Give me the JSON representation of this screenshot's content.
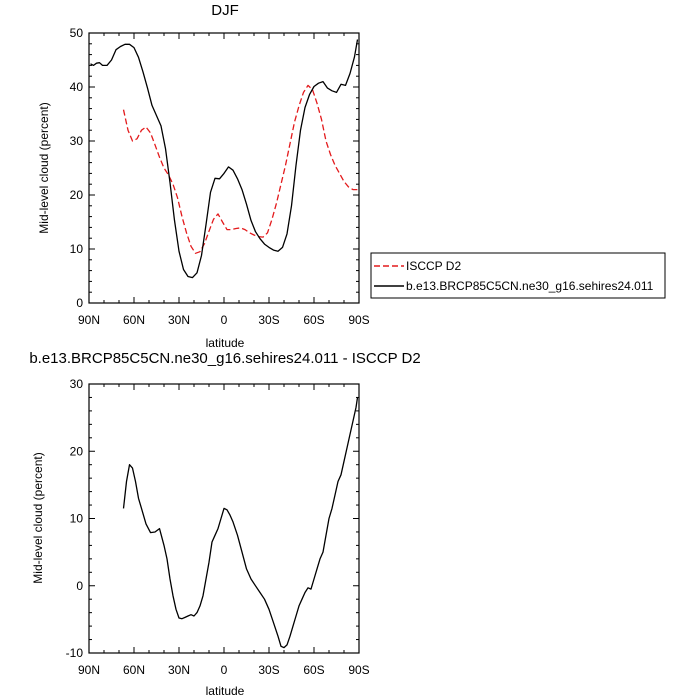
{
  "colors": {
    "model": "#000000",
    "obs": "#e31a1c",
    "axis": "#000000"
  },
  "chart_data": [
    {
      "type": "line",
      "title": "DJF",
      "xlabel": "latitude",
      "ylabel": "Mid-level cloud (percent)",
      "xlim": [
        -90,
        90
      ],
      "ylim": [
        0,
        50
      ],
      "x_tick_values": [
        -90,
        -60,
        -30,
        0,
        30,
        60,
        90
      ],
      "x_tick_labels": [
        "90N",
        "60N",
        "30N",
        "0",
        "30S",
        "60S",
        "90S"
      ],
      "y_ticks": [
        0,
        10,
        20,
        30,
        40,
        50
      ],
      "grid": false,
      "legend_position": "outside-right",
      "series": [
        {
          "name": "ISCCP D2",
          "style": "dashed",
          "color": "#e31a1c",
          "x": [
            -67,
            -64,
            -61,
            -58,
            -55,
            -52,
            -49,
            -46,
            -43,
            -40,
            -37,
            -34,
            -31,
            -28,
            -25,
            -22,
            -19,
            -16,
            -13,
            -10,
            -7,
            -4,
            -1,
            2,
            5,
            8,
            11,
            14,
            17,
            20,
            23,
            26,
            29,
            32,
            35,
            38,
            41,
            44,
            47,
            50,
            53,
            56,
            59,
            62,
            65,
            68,
            71,
            74,
            77,
            80,
            83,
            86,
            89
          ],
          "values": [
            35.8,
            32.0,
            30.0,
            30.4,
            32.0,
            32.6,
            31.5,
            29.3,
            27.0,
            25.0,
            23.7,
            22.0,
            19.5,
            16.0,
            13.0,
            10.5,
            9.2,
            9.5,
            11.0,
            13.3,
            15.5,
            16.5,
            15.0,
            13.6,
            13.6,
            13.8,
            13.9,
            13.6,
            13.0,
            12.6,
            12.3,
            12.2,
            13.0,
            15.5,
            18.5,
            22.0,
            25.5,
            29.5,
            33.5,
            36.5,
            39.0,
            40.3,
            39.5,
            37.0,
            34.0,
            30.0,
            27.5,
            25.5,
            24.0,
            22.5,
            21.5,
            21.0,
            21.0
          ]
        },
        {
          "name": "b.e13.BRCP85C5CN.ne30_g16.sehires24.011",
          "style": "solid",
          "color": "#000000",
          "x": [
            -89,
            -87,
            -85,
            -83,
            -81,
            -78,
            -75,
            -72,
            -69,
            -66,
            -63,
            -60,
            -57,
            -54,
            -51,
            -48,
            -45,
            -42,
            -39,
            -36,
            -33,
            -30,
            -27,
            -24,
            -21,
            -18,
            -15,
            -12,
            -9,
            -6,
            -3,
            0,
            3,
            6,
            9,
            12,
            15,
            18,
            21,
            24,
            27,
            30,
            33,
            36,
            39,
            42,
            45,
            48,
            51,
            54,
            57,
            60,
            63,
            66,
            69,
            72,
            75,
            78,
            81,
            84,
            87,
            89
          ],
          "values": [
            44.3,
            44.0,
            44.4,
            44.5,
            44.0,
            44.0,
            45.0,
            46.9,
            47.5,
            47.9,
            47.9,
            47.3,
            45.5,
            42.8,
            39.8,
            36.6,
            34.7,
            32.8,
            28.6,
            22.3,
            15.3,
            9.6,
            6.2,
            4.9,
            4.7,
            5.6,
            8.8,
            14.5,
            20.5,
            23.1,
            23.0,
            24.0,
            25.2,
            24.6,
            23.0,
            21.0,
            18.3,
            15.3,
            13.2,
            11.9,
            10.9,
            10.3,
            9.8,
            9.6,
            10.3,
            12.8,
            18.0,
            25.5,
            32.0,
            36.2,
            38.6,
            40.1,
            40.7,
            41.0,
            39.8,
            39.3,
            39.0,
            40.5,
            40.3,
            42.5,
            45.6,
            48.8
          ]
        }
      ]
    },
    {
      "type": "line",
      "title": "b.e13.BRCP85C5CN.ne30_g16.sehires24.011 - ISCCP D2",
      "xlabel": "latitude",
      "ylabel": "Mid-level cloud (percent)",
      "xlim": [
        -90,
        90
      ],
      "ylim": [
        -10,
        30
      ],
      "x_tick_values": [
        -90,
        -60,
        -30,
        0,
        30,
        60,
        90
      ],
      "x_tick_labels": [
        "90N",
        "60N",
        "30N",
        "0",
        "30S",
        "60S",
        "90S"
      ],
      "y_ticks": [
        -10,
        0,
        10,
        20,
        30
      ],
      "grid": false,
      "legend_position": "none",
      "series": [
        {
          "style": "solid",
          "color": "#000000",
          "x": [
            -67,
            -65,
            -63,
            -61,
            -59,
            -57,
            -55,
            -52,
            -49,
            -46,
            -43,
            -40,
            -38,
            -36,
            -34,
            -32,
            -30,
            -28,
            -26,
            -24,
            -22,
            -20,
            -18,
            -16,
            -14,
            -12,
            -10,
            -8,
            -6,
            -4,
            -2,
            0,
            2,
            4,
            6,
            9,
            12,
            15,
            18,
            21,
            24,
            27,
            30,
            33,
            36,
            38,
            40,
            42,
            44,
            46,
            48,
            50,
            52,
            54,
            56,
            58,
            60,
            62,
            64,
            66,
            68,
            70,
            72,
            74,
            76,
            78,
            80,
            82,
            84,
            86,
            88,
            89
          ],
          "values": [
            11.5,
            15.5,
            18.0,
            17.5,
            15.5,
            13.0,
            11.5,
            9.2,
            7.9,
            8.0,
            8.5,
            6.0,
            4.0,
            1.0,
            -1.5,
            -3.5,
            -4.8,
            -4.9,
            -4.7,
            -4.5,
            -4.3,
            -4.5,
            -4.0,
            -3.0,
            -1.5,
            1.0,
            3.5,
            6.5,
            7.5,
            8.5,
            10.0,
            11.5,
            11.3,
            10.5,
            9.5,
            7.5,
            5.0,
            2.5,
            1.0,
            0.0,
            -1.0,
            -2.0,
            -3.5,
            -5.5,
            -7.5,
            -9.0,
            -9.2,
            -8.8,
            -7.5,
            -6.0,
            -4.5,
            -3.0,
            -2.0,
            -1.0,
            -0.3,
            -0.5,
            1.0,
            2.5,
            4.0,
            5.0,
            7.5,
            10.0,
            11.5,
            13.5,
            15.5,
            16.5,
            18.5,
            20.5,
            22.5,
            24.5,
            26.5,
            28.0
          ]
        }
      ]
    }
  ]
}
